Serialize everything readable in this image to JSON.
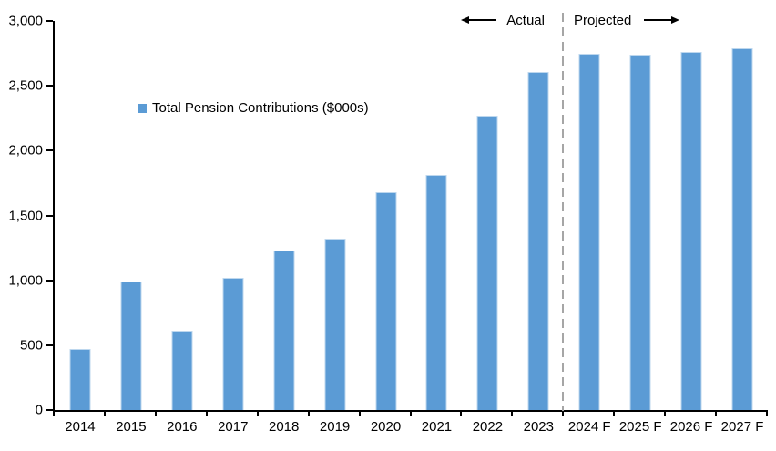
{
  "chart_data": {
    "type": "bar",
    "legend_label": "Total Pension Contributions ($000s)",
    "categories": [
      "2014",
      "2015",
      "2016",
      "2017",
      "2018",
      "2019",
      "2020",
      "2021",
      "2022",
      "2023",
      "2024 F",
      "2025 F",
      "2026 F",
      "2027 F"
    ],
    "values": [
      470,
      990,
      610,
      1020,
      1230,
      1320,
      1680,
      1810,
      2270,
      2610,
      2750,
      2740,
      2760,
      2790
    ],
    "ylim": [
      0,
      3000
    ],
    "ytick_values": [
      0,
      500,
      1000,
      1500,
      2000,
      2500,
      3000
    ],
    "ytick_labels": [
      "0",
      "500",
      "1,000",
      "1,500",
      "2,000",
      "2,500",
      "3,000"
    ],
    "xlabel": "",
    "ylabel": "",
    "gridlines": false,
    "legend_position": "inside-upper-left",
    "annotations": {
      "actual_label": "Actual",
      "projected_label": "Projected"
    },
    "divider_index": 10,
    "colors": {
      "bar_fill": "#5B9BD5",
      "bar_edge": "#BDD7EE",
      "axis": "#000000",
      "text": "#000000",
      "divider": "#A6A6A6"
    }
  }
}
